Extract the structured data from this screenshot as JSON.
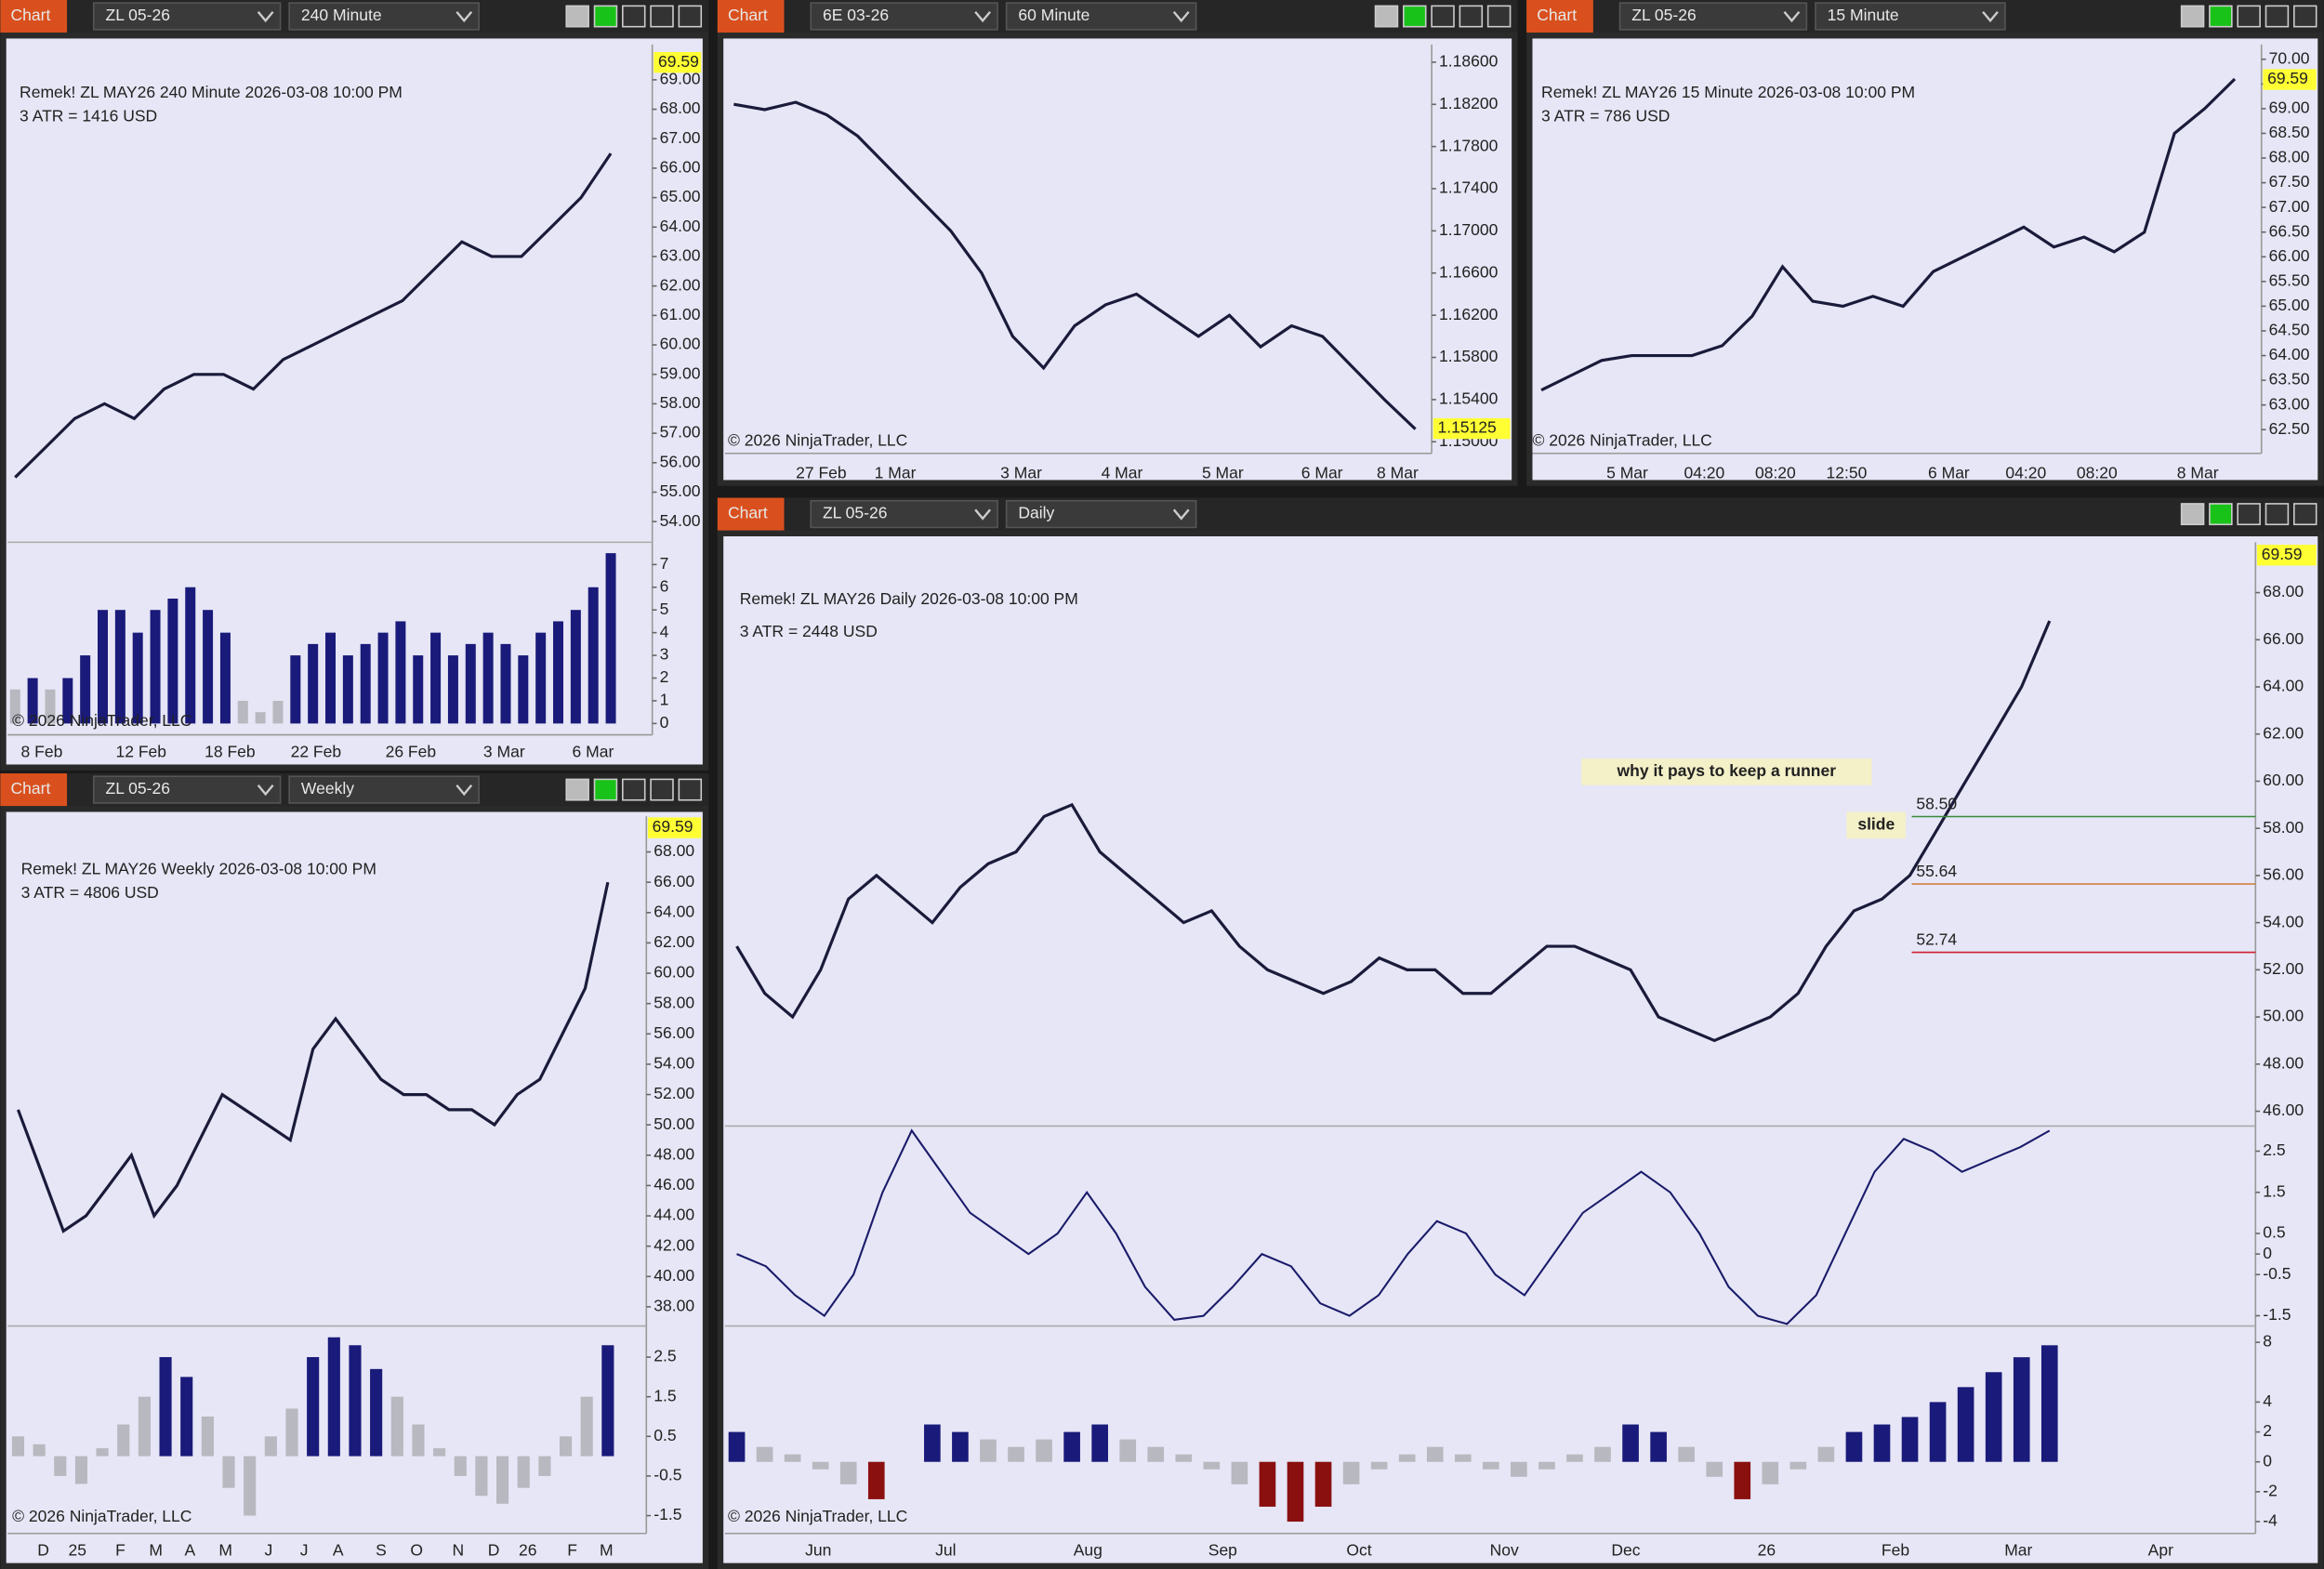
{
  "windows": [
    {
      "tab": "Chart",
      "instrument": "ZL 05-26",
      "timeframe": "240 Minute",
      "header": [
        "Remek!  ZL MAY26  240 Minute  2026-03-08 10:00 PM",
        "3 ATR = 1416 USD"
      ],
      "copyright": "© 2026 NinjaTrader, LLC",
      "chart_data": {
        "type": "line",
        "xticks": [
          "8 Feb",
          "12 Feb",
          "18 Feb",
          "22 Feb",
          "26 Feb",
          "3 Mar",
          "6 Mar"
        ],
        "current_price": 69.59,
        "panes": [
          {
            "type": "line",
            "color": "#1a1a3a",
            "ylim": [
              53.5,
              70.1
            ],
            "yticks": [
              {
                "value": 54,
                "label": "54.00"
              },
              {
                "value": 55,
                "label": "55.00"
              },
              {
                "value": 56,
                "label": "56.00"
              },
              {
                "value": 57,
                "label": "57.00"
              },
              {
                "value": 58,
                "label": "58.00"
              },
              {
                "value": 59,
                "label": "59.00"
              },
              {
                "value": 60,
                "label": "60.00"
              },
              {
                "value": 61,
                "label": "61.00"
              },
              {
                "value": 62,
                "label": "62.00"
              },
              {
                "value": 63,
                "label": "63.00"
              },
              {
                "value": 64,
                "label": "64.00"
              },
              {
                "value": 65,
                "label": "65.00"
              },
              {
                "value": 66,
                "label": "66.00"
              },
              {
                "value": 67,
                "label": "67.00"
              },
              {
                "value": 68,
                "label": "68.00"
              },
              {
                "value": 69,
                "label": "69.00"
              }
            ],
            "values": [
              55.5,
              56.5,
              57.5,
              58,
              57.5,
              58.5,
              59,
              59,
              58.5,
              59.5,
              60,
              60.5,
              61,
              61.5,
              62.5,
              63.5,
              63,
              63,
              64,
              65,
              66.5
            ]
          },
          {
            "type": "bar",
            "color": "#1a1a7a",
            "ylim": [
              -0.5,
              7.85
            ],
            "yticks": [
              0,
              1,
              2,
              3,
              4,
              5,
              6,
              7
            ],
            "values": [
              1.5,
              2,
              1.5,
              2,
              3,
              5,
              5,
              4,
              5,
              5.5,
              6,
              5,
              4,
              1,
              0.5,
              1,
              3,
              3.5,
              4,
              3,
              3.5,
              4,
              4.5,
              3,
              4,
              3,
              3.5,
              4,
              3.5,
              3,
              4,
              4.5,
              5,
              6,
              7.5
            ]
          }
        ]
      }
    },
    {
      "tab": "Chart",
      "instrument": "6E 03-26",
      "timeframe": "60 Minute",
      "copyright": "© 2026 NinjaTrader, LLC",
      "chart_data": {
        "type": "line",
        "xticks": [
          "27 Feb",
          "1 Mar",
          "3 Mar",
          "4 Mar",
          "5 Mar",
          "6 Mar",
          "8 Mar"
        ],
        "current_price": 1.15125,
        "panes": [
          {
            "type": "line",
            "color": "#1a1a3a",
            "ylim": [
              1.1489,
              1.1874
            ],
            "yticks": [
              {
                "value": 1.186,
                "label": "1.18600"
              },
              {
                "value": 1.182,
                "label": "1.18200"
              },
              {
                "value": 1.178,
                "label": "1.17800"
              },
              {
                "value": 1.174,
                "label": "1.17400"
              },
              {
                "value": 1.17,
                "label": "1.17000"
              },
              {
                "value": 1.166,
                "label": "1.16600"
              },
              {
                "value": 1.162,
                "label": "1.16200"
              },
              {
                "value": 1.158,
                "label": "1.15800"
              },
              {
                "value": 1.154,
                "label": "1.15400"
              },
              {
                "value": 1.15,
                "label": "1.15000"
              }
            ],
            "values": [
              1.182,
              1.1815,
              1.1822,
              1.181,
              1.179,
              1.176,
              1.173,
              1.17,
              1.166,
              1.16,
              1.157,
              1.161,
              1.163,
              1.164,
              1.162,
              1.16,
              1.162,
              1.159,
              1.161,
              1.16,
              1.157,
              1.154,
              1.1512
            ]
          }
        ]
      }
    },
    {
      "tab": "Chart",
      "instrument": "ZL 05-26",
      "timeframe": "15 Minute",
      "header": [
        "Remek!  ZL MAY26  15 Minute  2026-03-08 10:00 PM",
        "3 ATR = 786 USD"
      ],
      "copyright": "© 2026 NinjaTrader, LLC",
      "chart_data": {
        "type": "line",
        "xticks": [
          "5 Mar",
          "04:20",
          "08:20",
          "12:50",
          "6 Mar",
          "04:20",
          "08:20",
          "8 Mar"
        ],
        "current_price": 69.59,
        "panes": [
          {
            "type": "line",
            "color": "#1a1a3a",
            "ylim": [
              62.02,
              70.24
            ],
            "yticks": [
              {
                "value": 62.5,
                "label": "62.50"
              },
              {
                "value": 63,
                "label": "63.00"
              },
              {
                "value": 63.5,
                "label": "63.50"
              },
              {
                "value": 64,
                "label": "64.00"
              },
              {
                "value": 64.5,
                "label": "64.50"
              },
              {
                "value": 65,
                "label": "65.00"
              },
              {
                "value": 65.5,
                "label": "65.50"
              },
              {
                "value": 66,
                "label": "66.00"
              },
              {
                "value": 66.5,
                "label": "66.50"
              },
              {
                "value": 67,
                "label": "67.00"
              },
              {
                "value": 67.5,
                "label": "67.50"
              },
              {
                "value": 68,
                "label": "68.00"
              },
              {
                "value": 68.5,
                "label": "68.50"
              },
              {
                "value": 69,
                "label": "69.00"
              },
              {
                "value": 69.5,
                "label": "69.50"
              },
              {
                "value": 70,
                "label": "70.00"
              }
            ],
            "values": [
              63.3,
              63.6,
              63.9,
              64,
              64,
              64,
              64.2,
              64.8,
              65.8,
              65.1,
              65,
              65.2,
              65,
              65.7,
              66,
              66.3,
              66.6,
              66.2,
              66.4,
              66.1,
              66.5,
              68.5,
              69,
              69.6
            ]
          }
        ]
      }
    },
    {
      "tab": "Chart",
      "instrument": "ZL 05-26",
      "timeframe": "Weekly",
      "header": [
        "Remek!  ZL MAY26  Weekly  2026-03-08 10:00 PM",
        "3 ATR = 4806 USD"
      ],
      "copyright": "© 2026 NinjaTrader, LLC",
      "chart_data": {
        "type": "line",
        "xticks": [
          "D",
          "25",
          "F",
          "M",
          "A",
          "M",
          "J",
          "J",
          "A",
          "S",
          "O",
          "N",
          "D",
          "26",
          "F",
          "M"
        ],
        "current_price": 69.59,
        "panes": [
          {
            "type": "line",
            "color": "#1a1a3a",
            "ylim": [
              36.93,
              70.15
            ],
            "yticks": [
              {
                "value": 38,
                "label": "38.00"
              },
              {
                "value": 40,
                "label": "40.00"
              },
              {
                "value": 42,
                "label": "42.00"
              },
              {
                "value": 44,
                "label": "44.00"
              },
              {
                "value": 46,
                "label": "46.00"
              },
              {
                "value": 48,
                "label": "48.00"
              },
              {
                "value": 50,
                "label": "50.00"
              },
              {
                "value": 52,
                "label": "52.00"
              },
              {
                "value": 54,
                "label": "54.00"
              },
              {
                "value": 56,
                "label": "56.00"
              },
              {
                "value": 58,
                "label": "58.00"
              },
              {
                "value": 60,
                "label": "60.00"
              },
              {
                "value": 62,
                "label": "62.00"
              },
              {
                "value": 64,
                "label": "64.00"
              },
              {
                "value": 66,
                "label": "66.00"
              },
              {
                "value": 68,
                "label": "68.00"
              }
            ],
            "values": [
              51,
              47,
              43,
              44,
              46,
              48,
              44,
              46,
              49,
              52,
              51,
              50,
              49,
              55,
              57,
              55,
              53,
              52,
              52,
              51,
              51,
              50,
              52,
              53,
              56,
              59,
              66
            ]
          },
          {
            "type": "bar",
            "color": "#1a1a7a",
            "ylim": [
              -1.95,
              3.21
            ],
            "yticks": [
              2.5,
              1.5,
              0.5,
              -0.5,
              -1.5
            ],
            "values": [
              0.5,
              0.3,
              -0.5,
              -0.7,
              0.2,
              0.8,
              1.5,
              2.5,
              2,
              1,
              -0.8,
              -1.5,
              0.5,
              1.2,
              2.5,
              3,
              2.8,
              2.2,
              1.5,
              0.8,
              0.2,
              -0.5,
              -1,
              -1.2,
              -0.8,
              -0.5,
              0.5,
              1.5,
              2.8
            ]
          }
        ]
      }
    },
    {
      "tab": "Chart",
      "instrument": "ZL 05-26",
      "timeframe": "Daily",
      "header": [
        "Remek!  ZL MAY26  Daily  2026-03-08 10:00 PM",
        "3 ATR = 2448 USD"
      ],
      "copyright": "© 2026 NinjaTrader, LLC",
      "annotations": [
        "why it pays to keep a runner",
        "slide"
      ],
      "chart_data": {
        "type": "line",
        "xticks": [
          "Jun",
          "Jul",
          "Aug",
          "Sep",
          "Oct",
          "Nov",
          "Dec",
          "26",
          "Feb",
          "Mar",
          "Apr"
        ],
        "current_price": 69.59,
        "levels": [
          {
            "value": 58.5,
            "label": "58.50",
            "color": "#3a8a3a"
          },
          {
            "value": 55.64,
            "label": "55.64",
            "color": "#d08040"
          },
          {
            "value": 52.74,
            "label": "52.74",
            "color": "#d02030"
          }
        ],
        "panes": [
          {
            "type": "line",
            "color": "#1a1a3a",
            "ylim": [
              45.5,
              70.01
            ],
            "yticks": [
              {
                "value": 46,
                "label": "46.00"
              },
              {
                "value": 48,
                "label": "48.00"
              },
              {
                "value": 50,
                "label": "50.00"
              },
              {
                "value": 52,
                "label": "52.00"
              },
              {
                "value": 54,
                "label": "54.00"
              },
              {
                "value": 56,
                "label": "56.00"
              },
              {
                "value": 58,
                "label": "58.00"
              },
              {
                "value": 60,
                "label": "60.00"
              },
              {
                "value": 62,
                "label": "62.00"
              },
              {
                "value": 64,
                "label": "64.00"
              },
              {
                "value": 66,
                "label": "66.00"
              },
              {
                "value": 68,
                "label": "68.00"
              }
            ],
            "values": [
              53,
              51,
              50,
              52,
              55,
              56,
              55,
              54,
              55.5,
              56.5,
              57,
              58.5,
              59,
              57,
              56,
              55,
              54,
              54.5,
              53,
              52,
              51.5,
              51,
              51.5,
              52.5,
              52,
              52,
              51,
              51,
              52,
              53,
              53,
              52.5,
              52,
              50,
              49.5,
              49,
              49.5,
              50,
              51,
              53,
              54.5,
              55,
              56,
              58,
              60,
              62,
              64,
              66.8
            ]
          },
          {
            "type": "line",
            "color": "#1a1a6a",
            "ylim": [
              -1.75,
              3.04
            ],
            "yticks": [
              2.5,
              1.5,
              0.5,
              0,
              -0.5,
              -1.5
            ],
            "values": [
              0,
              -0.3,
              -1,
              -1.5,
              -0.5,
              1.5,
              3,
              2,
              1,
              0.5,
              0,
              0.5,
              1.5,
              0.5,
              -0.8,
              -1.6,
              -1.5,
              -0.8,
              0,
              -0.3,
              -1.2,
              -1.5,
              -1,
              0,
              0.8,
              0.5,
              -0.5,
              -1,
              0,
              1,
              1.5,
              2,
              1.5,
              0.5,
              -0.8,
              -1.5,
              -1.7,
              -1,
              0.5,
              2,
              2.8,
              2.5,
              2,
              2.3,
              2.6,
              3
            ]
          },
          {
            "type": "bar",
            "color": "#1a1a7a",
            "ylim": [
              -4.79,
              8.89
            ],
            "yticks": [
              8,
              4,
              2,
              0,
              -2,
              -4
            ],
            "values": [
              2,
              1,
              0.5,
              -0.5,
              -1.5,
              -2.5,
              0,
              2.5,
              2,
              1.5,
              1,
              1.5,
              2,
              2.5,
              1.5,
              1,
              0.5,
              -0.5,
              -1.5,
              -3,
              -4,
              -3,
              -1.5,
              -0.5,
              0.5,
              1,
              0.5,
              -0.5,
              -1,
              -0.5,
              0.5,
              1,
              2.5,
              2,
              1,
              -1,
              -2.5,
              -1.5,
              -0.5,
              1,
              2,
              2.5,
              3,
              4,
              5,
              6,
              7,
              7.8
            ]
          }
        ]
      }
    }
  ]
}
